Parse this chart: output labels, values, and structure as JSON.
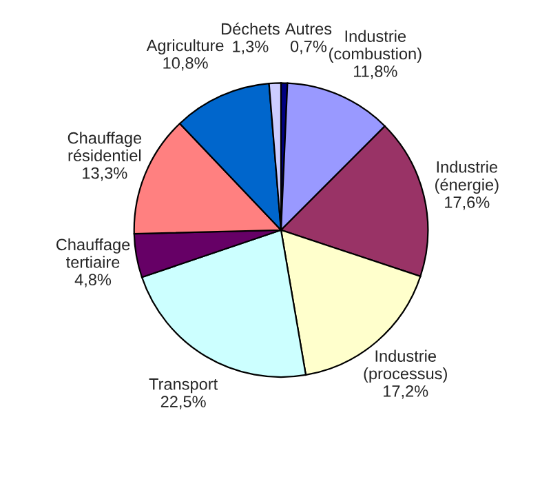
{
  "chart_data": {
    "type": "pie",
    "categories": [
      "Autres",
      "Industrie (combustion)",
      "Industrie (énergie)",
      "Industrie (processus)",
      "Transport",
      "Chauffage tertiaire",
      "Chauffage résidentiel",
      "Agriculture",
      "Déchets"
    ],
    "values": [
      0.7,
      11.8,
      17.6,
      17.2,
      22.5,
      4.8,
      13.3,
      10.8,
      1.3
    ],
    "value_labels": [
      "0,7%",
      "11,8%",
      "17,6%",
      "17,2%",
      "22,5%",
      "4,8%",
      "13,3%",
      "10,8%",
      "1,3%"
    ],
    "colors": [
      "#000080",
      "#9999ff",
      "#993366",
      "#ffffcc",
      "#ccffff",
      "#660066",
      "#ff8080",
      "#0066cc",
      "#ccccff"
    ],
    "legend": false
  }
}
